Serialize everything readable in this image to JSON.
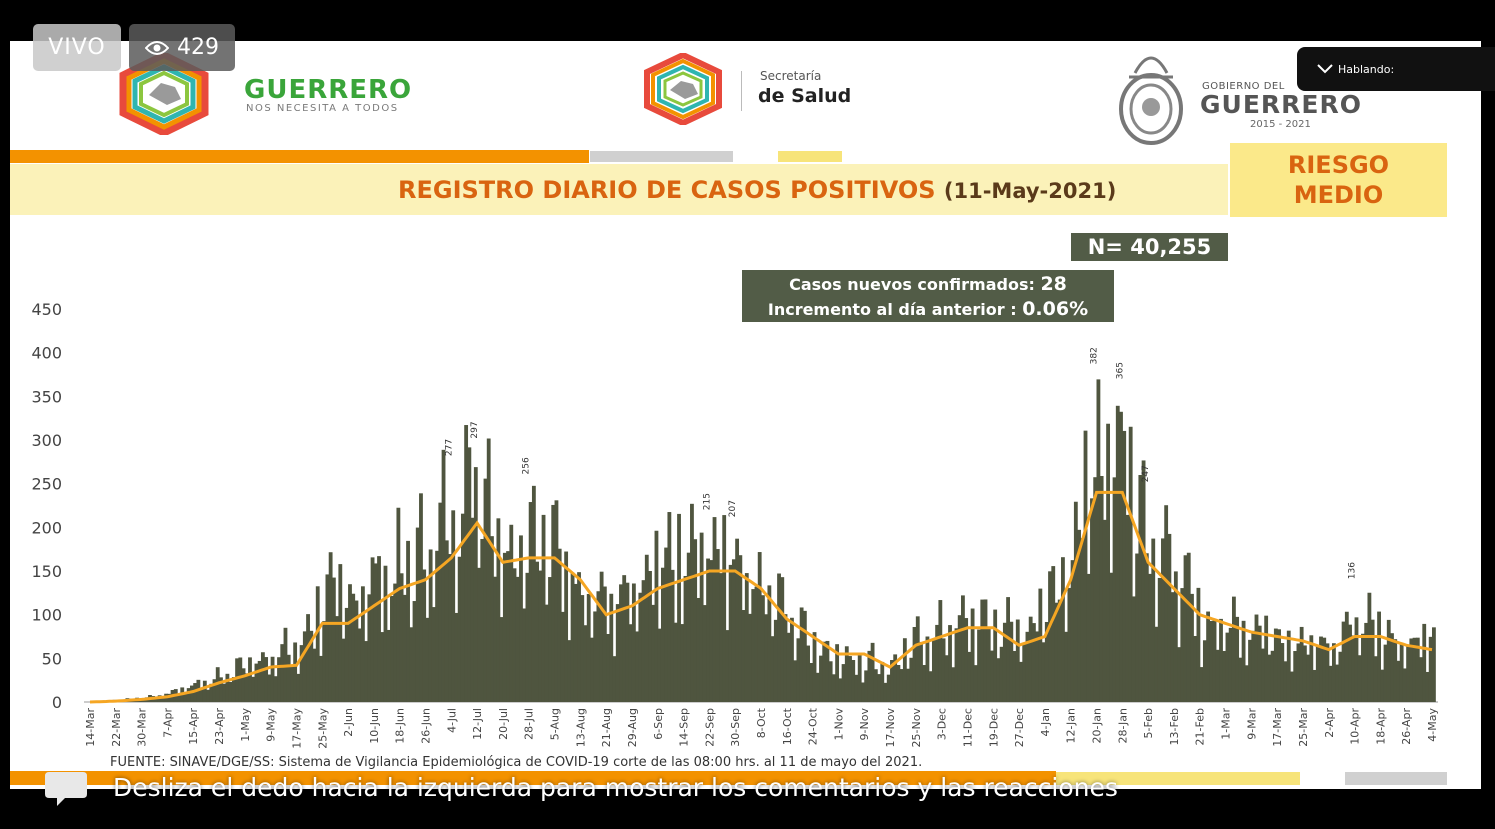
{
  "overlay": {
    "live_label": "VIVO",
    "viewers": "429",
    "talking_label": "Hablando:",
    "swipe_hint": "Desliza el dedo hacia la izquierda para mostrar los comentarios y las reacciones"
  },
  "header": {
    "guerrero_name": "GUERRERO",
    "guerrero_tagline": "NOS NECESITA A TODOS",
    "salud_small": "Secretaría",
    "salud_big": "de Salud",
    "gob_small": "GOBIERNO DEL",
    "gob_big": "GUERRERO",
    "gob_years": "2015 - 2021"
  },
  "title": {
    "main": "REGISTRO DIARIO DE CASOS POSITIVOS",
    "date": "(11-May-2021)"
  },
  "risk": {
    "line1": "RIESGO",
    "line2": "MEDIO"
  },
  "summary": {
    "total": "N= 40,255",
    "new_cases_label": "Casos nuevos confirmados:",
    "new_cases_value": "28",
    "increment_label": "Incremento al día anterior :",
    "increment_value": "0.06%"
  },
  "source_note": "FUENTE: SINAVE/DGE/SS: Sistema de Vigilancia Epidemiológica de COVID-19 corte de las 08:00 hrs. al 11 de mayo del 2021.",
  "colors": {
    "bars": "#4f553f",
    "average": "#f5a623",
    "title": "#d96410"
  },
  "chart_data": {
    "type": "bar",
    "ylim": [
      0,
      450
    ],
    "yticks": [
      0,
      50,
      100,
      150,
      200,
      250,
      300,
      350,
      400,
      450
    ],
    "xtick_labels": [
      "14-Mar",
      "22-Mar",
      "30-Mar",
      "7-Apr",
      "15-Apr",
      "23-Apr",
      "1-May",
      "9-May",
      "17-May",
      "25-May",
      "2-Jun",
      "10-Jun",
      "18-Jun",
      "26-Jun",
      "4-Jul",
      "12-Jul",
      "20-Jul",
      "28-Jul",
      "5-Aug",
      "13-Aug",
      "21-Aug",
      "29-Aug",
      "6-Sep",
      "14-Sep",
      "22-Sep",
      "30-Sep",
      "8-Oct",
      "16-Oct",
      "24-Oct",
      "1-Nov",
      "9-Nov",
      "17-Nov",
      "25-Nov",
      "3-Dec",
      "11-Dec",
      "19-Dec",
      "27-Dec",
      "4-Jan",
      "12-Jan",
      "20-Jan",
      "28-Jan",
      "5-Feb",
      "13-Feb",
      "21-Feb",
      "1-Mar",
      "9-Mar",
      "17-Mar",
      "25-Mar",
      "2-Apr",
      "10-Apr",
      "18-Apr",
      "26-Apr",
      "4-May"
    ],
    "grid": false,
    "series": [
      {
        "name": "",
        "type": "bar",
        "values_by_tick": [
          1,
          2,
          5,
          10,
          20,
          30,
          45,
          55,
          60,
          120,
          120,
          140,
          150,
          170,
          220,
          280,
          180,
          210,
          170,
          140,
          110,
          120,
          150,
          160,
          180,
          170,
          140,
          100,
          70,
          50,
          50,
          40,
          70,
          80,
          90,
          90,
          80,
          110,
          180,
          300,
          300,
          200,
          150,
          90,
          90,
          90,
          80,
          70,
          60,
          100,
          80,
          70,
          80
        ]
      },
      {
        "name": "",
        "type": "line",
        "values_by_tick": [
          0,
          1,
          3,
          6,
          12,
          22,
          30,
          40,
          42,
          90,
          90,
          110,
          130,
          140,
          165,
          205,
          160,
          165,
          165,
          140,
          100,
          110,
          130,
          140,
          150,
          150,
          130,
          95,
          75,
          55,
          55,
          40,
          65,
          75,
          85,
          85,
          65,
          75,
          140,
          240,
          240,
          160,
          130,
          100,
          90,
          80,
          75,
          70,
          60,
          75,
          75,
          65,
          60
        ]
      }
    ],
    "peak_labels": [
      {
        "tick": "12-Jul",
        "value": 297
      },
      {
        "tick": "20-Jan",
        "value": 382
      },
      {
        "tick": "28-Jan",
        "value": 365
      },
      {
        "tick": "5-Feb",
        "value": 247
      },
      {
        "tick": "28-Jul",
        "value": 256
      },
      {
        "tick": "4-Jul",
        "value": 277
      },
      {
        "tick": "30-Sep",
        "value": 207
      },
      {
        "tick": "22-Sep",
        "value": 215
      },
      {
        "tick": "10-Apr",
        "value": 136
      }
    ]
  }
}
